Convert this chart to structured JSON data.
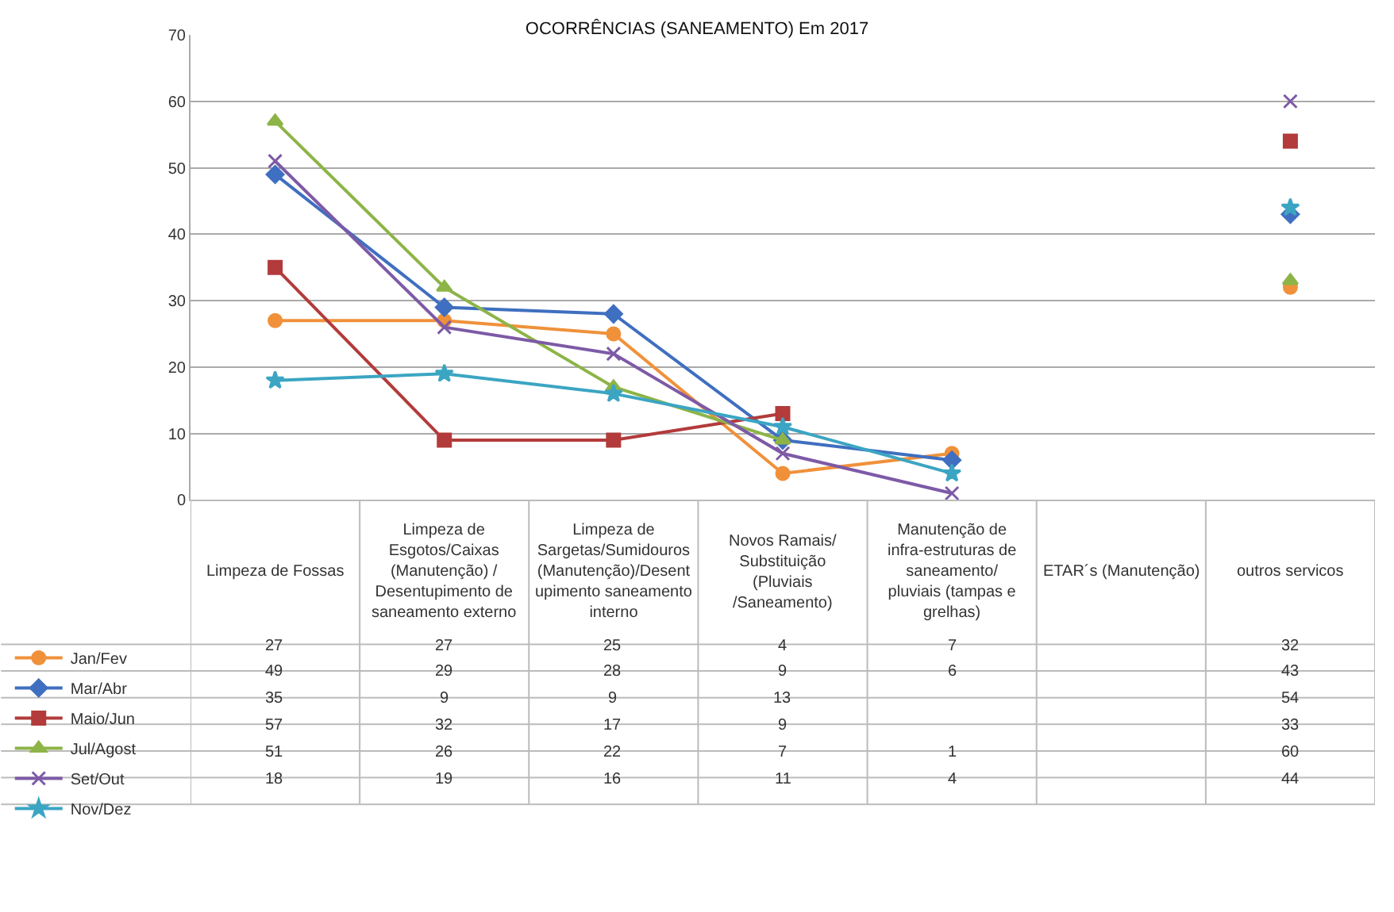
{
  "chart_data": {
    "type": "line",
    "title": "OCORRÊNCIAS (SANEAMENTO) Em 2017",
    "categories": [
      "Limpeza de Fossas",
      "Limpeza de Esgotos/Caixas (Manutenção) / Desentupimento de saneamento externo",
      "Limpeza de Sargetas/Sumidouros (Manutenção)/Desentupimento saneamento interno",
      "Novos Ramais/ Substituição (Pluviais /Saneamento)",
      "Manutenção de infra-estruturas de saneamento/ pluviais (tampas e grelhas)",
      "ETAR´s (Manutenção)",
      "outros servicos"
    ],
    "series": [
      {
        "name": "Jan/Fev",
        "color": "#f0913a",
        "marker": "circle",
        "values": [
          27,
          27,
          25,
          4,
          7,
          null,
          32
        ]
      },
      {
        "name": "Mar/Abr",
        "color": "#3f6fc0",
        "marker": "diamond",
        "values": [
          49,
          29,
          28,
          9,
          6,
          null,
          43
        ]
      },
      {
        "name": "Maio/Jun",
        "color": "#b33b3b",
        "marker": "square",
        "values": [
          35,
          9,
          9,
          13,
          null,
          null,
          54
        ]
      },
      {
        "name": "Jul/Agost",
        "color": "#8db447",
        "marker": "triangle",
        "values": [
          57,
          32,
          17,
          9,
          null,
          null,
          33
        ]
      },
      {
        "name": "Set/Out",
        "color": "#7d5aa6",
        "marker": "cross",
        "values": [
          51,
          26,
          22,
          7,
          1,
          null,
          60
        ]
      },
      {
        "name": "Nov/Dez",
        "color": "#3ba5c3",
        "marker": "star",
        "values": [
          18,
          19,
          16,
          11,
          4,
          null,
          44
        ]
      }
    ],
    "ylim": [
      0,
      70
    ],
    "yticks": [
      0,
      10,
      20,
      30,
      40,
      50,
      60,
      70
    ],
    "grid": "y",
    "legend": "bottom left",
    "data_labels": true,
    "line_style": "solid"
  }
}
